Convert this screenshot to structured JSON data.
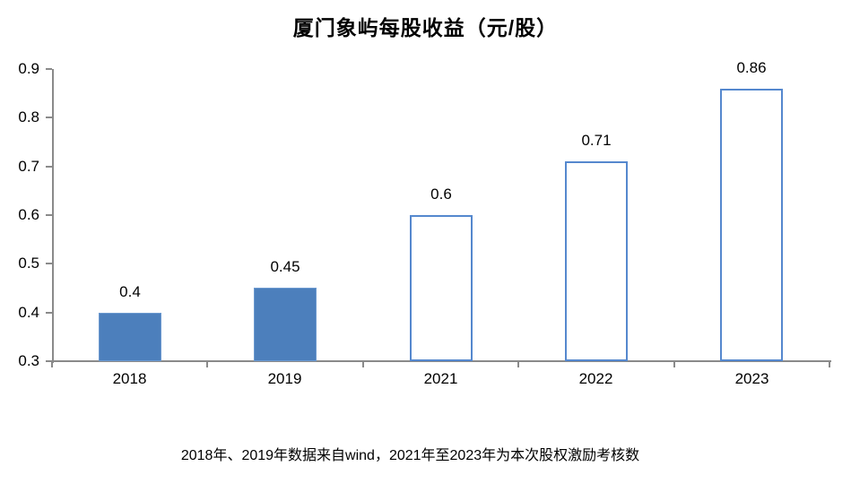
{
  "title": "厦门象屿每股收益（元/股）",
  "footnote": "2018年、2019年数据来自wind，2021年至2023年为本次股权激励考核数",
  "colors": {
    "bar_fill": "#4c7fbc",
    "bar_fill_border": "#6d9ad0",
    "bar_outline_border": "#5588ce",
    "bar_outline_fill": "#ffffff",
    "axis": "#8a8a8a",
    "text": "#000000"
  },
  "chart_data": {
    "type": "bar",
    "title": "厦门象屿每股收益（元/股）",
    "categories": [
      "2018",
      "2019",
      "2021",
      "2022",
      "2023"
    ],
    "values": [
      0.4,
      0.45,
      0.6,
      0.71,
      0.86
    ],
    "value_labels": [
      "0.4",
      "0.45",
      "0.6",
      "0.71",
      "0.86"
    ],
    "bar_styles": [
      "solid",
      "solid",
      "outline",
      "outline",
      "outline"
    ],
    "xlabel": "",
    "ylabel": "",
    "ylim": [
      0.3,
      0.9
    ],
    "ytick_step": 0.1,
    "ytick_labels": [
      "0.3",
      "0.4",
      "0.5",
      "0.6",
      "0.7",
      "0.8",
      "0.9"
    ],
    "grid": false,
    "legend": false,
    "footnote": "2018年、2019年数据来自wind，2021年至2023年为本次股权激励考核数"
  }
}
